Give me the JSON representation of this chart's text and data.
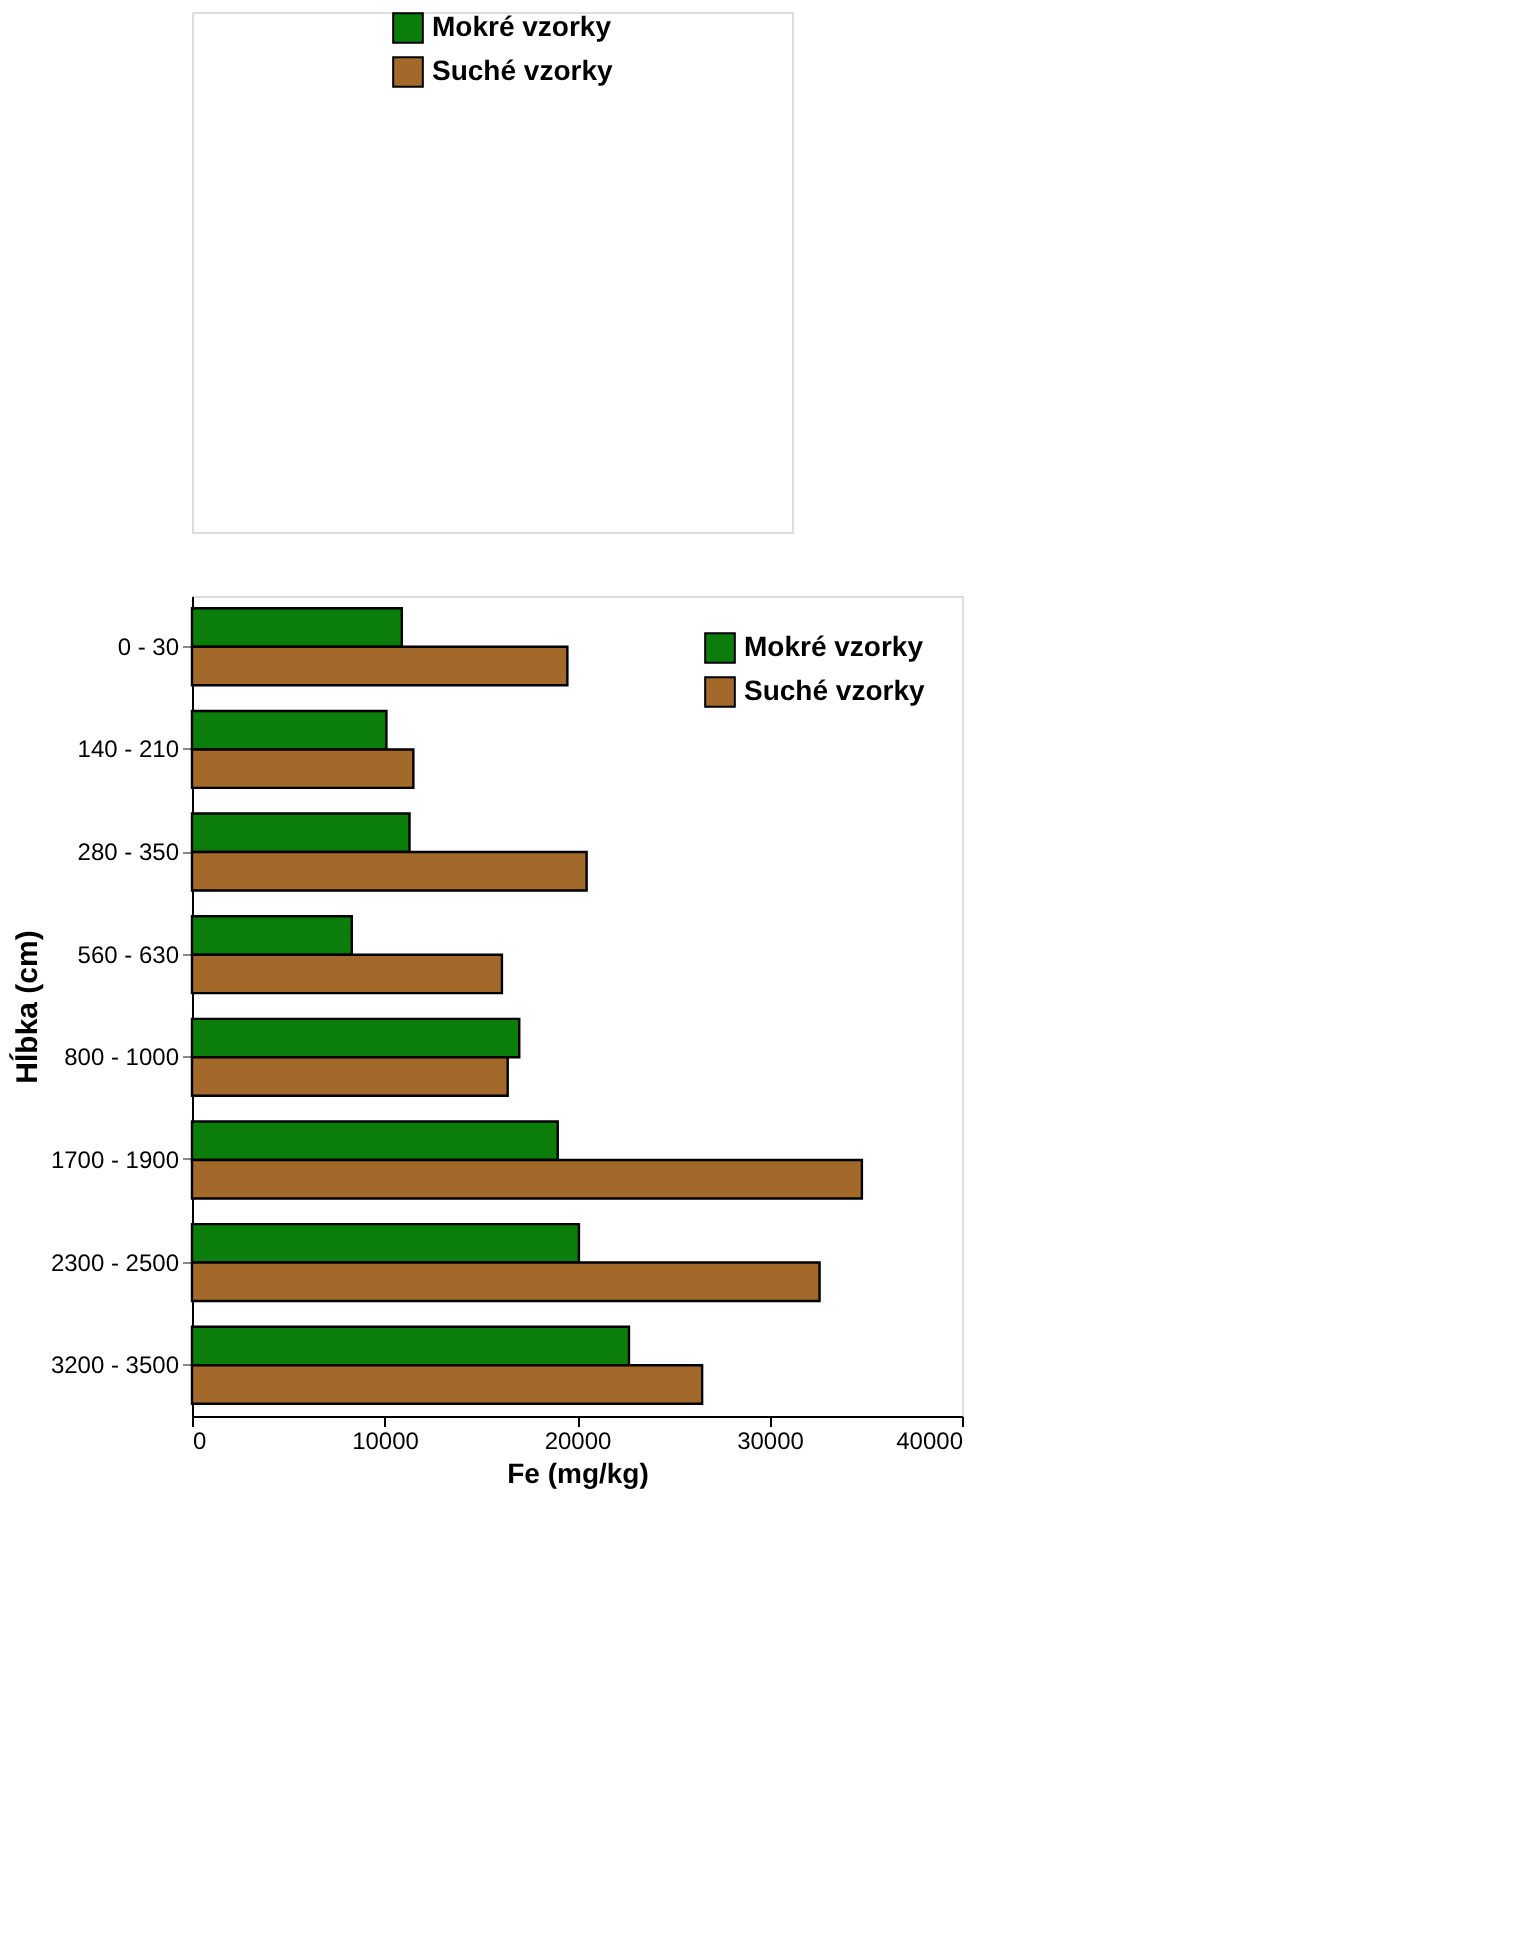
{
  "chart_data": [
    {
      "type": "other",
      "legend": "right",
      "series": [
        {
          "name": "Mokré vzorky",
          "color": "#0b7d0b"
        },
        {
          "name": "Suché vzorky",
          "color": "#a2692a"
        }
      ]
    },
    {
      "type": "bar",
      "orientation": "horizontal",
      "xlabel": "Fe (mg/kg)",
      "ylabel": "Hĺbka (cm)",
      "categories": [
        "0 - 30",
        "140 - 210",
        "280 - 350",
        "560 - 630",
        "800 - 1000",
        "1700 - 1900",
        "2300 - 2500",
        "3200 - 3500"
      ],
      "series": [
        {
          "name": "Mokré vzorky",
          "color": "#0b7d0b",
          "values": [
            10900,
            10100,
            11300,
            8300,
            17000,
            19000,
            20100,
            22700
          ]
        },
        {
          "name": "Suché vzorky",
          "color": "#a2692a",
          "values": [
            19500,
            11500,
            20500,
            16100,
            16400,
            34800,
            32600,
            26500
          ]
        }
      ],
      "xlim": [
        0,
        40000
      ],
      "xticks": [
        0,
        10000,
        20000,
        30000,
        40000
      ],
      "grid": false,
      "legend": "top right"
    }
  ]
}
